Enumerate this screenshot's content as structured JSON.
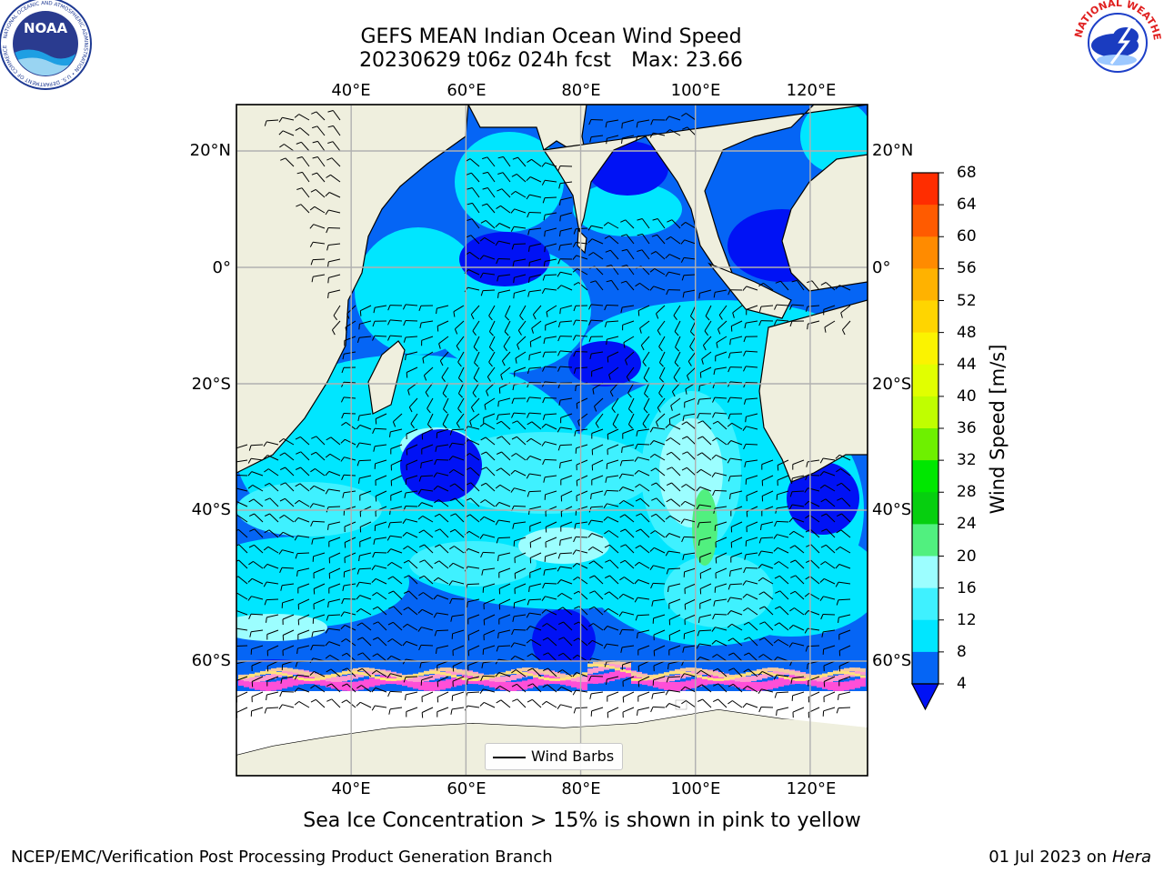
{
  "header": {
    "title_line1": "GEFS MEAN Indian Ocean Wind Speed",
    "title_date": "20230629 t06z 024h fcst",
    "title_max": "Max: 23.66"
  },
  "logos": {
    "left": "NOAA",
    "left_ring": "NATIONAL OCEANIC AND ATMOSPHERIC ADMINISTRATION • U.S. DEPARTMENT OF COMMERCE",
    "right_ring": "NATIONAL WEATHER SERVICE"
  },
  "map": {
    "lon_labels": [
      "40°E",
      "60°E",
      "80°E",
      "100°E",
      "120°E"
    ],
    "lat_labels": [
      "20°N",
      "0°",
      "20°S",
      "40°S",
      "60°S"
    ],
    "lon_range": [
      20,
      130
    ],
    "lat_range": [
      -70,
      28
    ],
    "land_color": "#efefde",
    "grid_color": "#b0b0b0",
    "legend_label": "Wind Barbs"
  },
  "colorbar": {
    "label": "Wind Speed [m/s]",
    "ticks": [
      "4",
      "8",
      "12",
      "16",
      "20",
      "24",
      "28",
      "32",
      "36",
      "40",
      "44",
      "48",
      "52",
      "56",
      "60",
      "64",
      "68"
    ],
    "colors": [
      "#0565f5",
      "#00e6ff",
      "#3ff1ff",
      "#9cfeff",
      "#51f07f",
      "#06cf0f",
      "#00e700",
      "#6ef000",
      "#c0fe00",
      "#e1ff00",
      "#fbf300",
      "#ffd500",
      "#ffb200",
      "#ff8b00",
      "#ff5b00",
      "#ff2d00"
    ],
    "under_color": "#0012f5"
  },
  "footer": {
    "sea_ice_note": "Sea Ice Concentration > 15% is shown in pink to yellow",
    "branch": "NCEP/EMC/Verification Post Processing Product Generation Branch",
    "date": "01 Jul 2023 on ",
    "machine": "Hera"
  }
}
